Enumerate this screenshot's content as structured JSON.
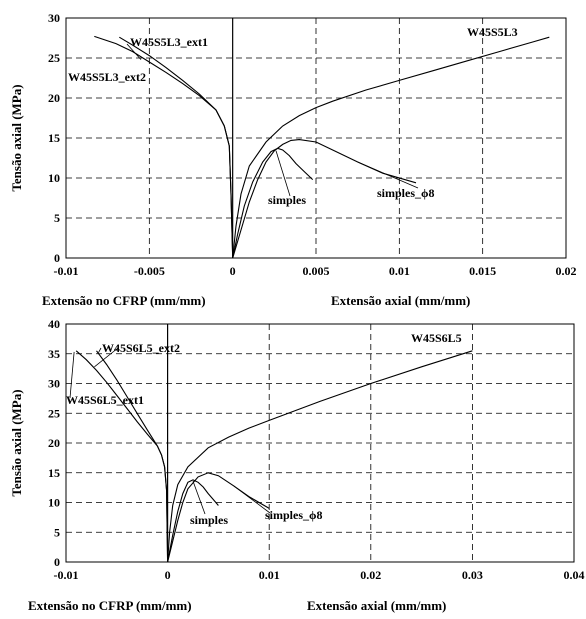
{
  "chart_data": [
    {
      "type": "line",
      "ylabel": "Tensão axial (MPa)",
      "xlabel_left": "Extensão no CFRP (mm/mm)",
      "xlabel_right": "Extensão axial (mm/mm)",
      "xlim": [
        -0.01,
        0.02
      ],
      "ylim": [
        0,
        30
      ],
      "x_ticks": [
        "-0.01",
        "-0.005",
        "0",
        "0.005",
        "0.01",
        "0.015",
        "0.02"
      ],
      "y_ticks": [
        "0",
        "5",
        "10",
        "15",
        "20",
        "25",
        "30"
      ],
      "grid": true,
      "series": [
        {
          "name": "W45S5L3",
          "x": [
            0,
            0.0002,
            0.0005,
            0.001,
            0.002,
            0.003,
            0.004,
            0.005,
            0.006,
            0.008,
            0.01,
            0.012,
            0.014,
            0.016,
            0.018,
            0.019
          ],
          "y": [
            0,
            4,
            8,
            11.5,
            14.5,
            16.5,
            17.8,
            18.8,
            19.6,
            21,
            22.2,
            23.4,
            24.6,
            25.8,
            27,
            27.6
          ]
        },
        {
          "name": "W45S5L3_ext1",
          "x": [
            0,
            -0.0001,
            -0.0002,
            -0.0005,
            -0.001,
            -0.002,
            -0.003,
            -0.004,
            -0.005,
            -0.006,
            -0.0068
          ],
          "y": [
            0,
            8,
            14,
            16.5,
            18.5,
            20.5,
            22.2,
            23.8,
            25.3,
            26.6,
            27.6
          ]
        },
        {
          "name": "W45S5L3_ext2",
          "x": [
            0,
            -0.0001,
            -0.0002,
            -0.0005,
            -0.001,
            -0.002,
            -0.003,
            -0.004,
            -0.005,
            -0.006,
            -0.007,
            -0.0083
          ],
          "y": [
            0,
            8,
            14,
            16.5,
            18.5,
            20.3,
            21.8,
            23.2,
            24.5,
            25.8,
            26.8,
            27.7
          ]
        },
        {
          "name": "simples",
          "x": [
            0,
            0.0003,
            0.0007,
            0.0012,
            0.0018,
            0.0023,
            0.0027,
            0.003,
            0.0034,
            0.0038,
            0.0043,
            0.0048
          ],
          "y": [
            0,
            3,
            6.5,
            9.5,
            12,
            13.3,
            13.7,
            13.5,
            12.8,
            11.8,
            10.8,
            9.8
          ]
        },
        {
          "name": "simples_ϕ8",
          "x": [
            0,
            0.0005,
            0.001,
            0.0015,
            0.002,
            0.0025,
            0.003,
            0.0035,
            0.004,
            0.005,
            0.006,
            0.0075,
            0.009,
            0.011
          ],
          "y": [
            0,
            3.5,
            7,
            9.8,
            12,
            13.4,
            14.2,
            14.7,
            14.8,
            14.5,
            13.5,
            12,
            10.6,
            9.4
          ]
        }
      ],
      "annotations": [
        "W45S5L3",
        "W45S5L3_ext1",
        "W45S5L3_ext2",
        "simples",
        "simples_ϕ8"
      ]
    },
    {
      "type": "line",
      "ylabel": "Tensão axial (MPa)",
      "xlabel_left": "Extensão no CFRP (mm/mm)",
      "xlabel_right": "Extensão axial (mm/mm)",
      "xlim": [
        -0.01,
        0.04
      ],
      "ylim": [
        0,
        40
      ],
      "x_ticks": [
        "-0.01",
        "0",
        "0.01",
        "0.02",
        "0.03",
        "0.04"
      ],
      "y_ticks": [
        "0",
        "5",
        "10",
        "15",
        "20",
        "25",
        "30",
        "35",
        "40"
      ],
      "grid": true,
      "series": [
        {
          "name": "W45S6L5",
          "x": [
            0,
            0.0002,
            0.0005,
            0.001,
            0.002,
            0.004,
            0.006,
            0.008,
            0.01,
            0.015,
            0.02,
            0.025,
            0.03
          ],
          "y": [
            0,
            5,
            9.5,
            13,
            16,
            19.2,
            21,
            22.5,
            23.8,
            27,
            30,
            32.8,
            35.5
          ]
        },
        {
          "name": "W45S6L5_ext2",
          "x": [
            0,
            -5e-05,
            -0.0001,
            -0.0003,
            -0.0006,
            -0.001,
            -0.002,
            -0.003,
            -0.004,
            -0.005,
            -0.006,
            -0.007
          ],
          "y": [
            0,
            6,
            12,
            16,
            18,
            19.5,
            22.2,
            25,
            27.8,
            30.6,
            33.2,
            35.5
          ]
        },
        {
          "name": "W45S6L5_ext1",
          "x": [
            0,
            -5e-05,
            -0.0001,
            -0.0003,
            -0.0006,
            -0.001,
            -0.002,
            -0.003,
            -0.004,
            -0.005,
            -0.006,
            -0.007,
            -0.008,
            -0.009
          ],
          "y": [
            0,
            6,
            12,
            16,
            18,
            19.5,
            21.5,
            23.6,
            25.8,
            28,
            30.2,
            32.2,
            34,
            35.5
          ]
        },
        {
          "name": "simples",
          "x": [
            0,
            0.0005,
            0.001,
            0.0015,
            0.002,
            0.0025,
            0.003,
            0.0035,
            0.004,
            0.0045,
            0.005
          ],
          "y": [
            0,
            4.5,
            8.5,
            11.5,
            13.4,
            13.8,
            13.4,
            12.6,
            11.5,
            10.5,
            9.5
          ]
        },
        {
          "name": "simples_ϕ8",
          "x": [
            0,
            0.0005,
            0.001,
            0.0015,
            0.002,
            0.003,
            0.004,
            0.005,
            0.0065,
            0.008,
            0.01
          ],
          "y": [
            0,
            3.5,
            7,
            10,
            12.3,
            14.3,
            15,
            14.5,
            12.8,
            11,
            9
          ]
        }
      ],
      "annotations": [
        "W45S6L5",
        "W45S6L5_ext2",
        "W45S6L5_ext1",
        "simples",
        "simples_ϕ8"
      ]
    }
  ]
}
